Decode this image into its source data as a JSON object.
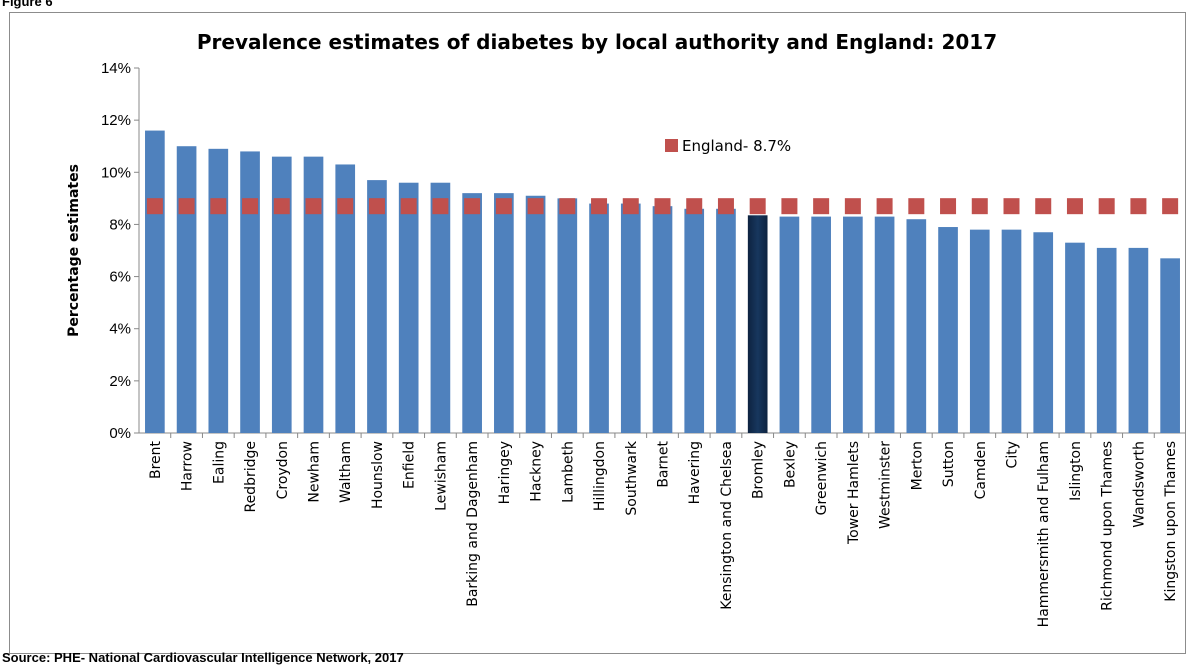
{
  "figure_label": "Figure 6",
  "source": "Source:  PHE- National Cardiovascular Intelligence Network, 2017",
  "colors": {
    "bar": "#4f81bd",
    "bar_highlight": "#17375e",
    "england_marker": "#c0504d",
    "axis": "#888888",
    "grid": "#d9d9d9"
  },
  "chart_data": {
    "type": "bar",
    "title": "Prevalence estimates of diabetes by local authority and England: 2017",
    "xlabel": "",
    "ylabel": "Percentage estimates",
    "ylim": [
      0,
      14
    ],
    "yticks": [
      0,
      2,
      4,
      6,
      8,
      10,
      12,
      14
    ],
    "ytick_labels": [
      "0%",
      "2%",
      "4%",
      "6%",
      "8%",
      "10%",
      "12%",
      "14%"
    ],
    "grid": false,
    "categories": [
      "Brent",
      "Harrow",
      "Ealing",
      "Redbridge",
      "Croydon",
      "Newham",
      "Waltham",
      "Hounslow",
      "Enfield",
      "Lewisham",
      "Barking and Dagenham",
      "Haringey",
      "Hackney",
      "Lambeth",
      "Hillingdon",
      "Southwark",
      "Barnet",
      "Havering",
      "Kensington and Chelsea",
      "Bromley",
      "Bexley",
      "Greenwich",
      "Tower Hamlets",
      "Westminster",
      "Merton",
      "Sutton",
      "Camden",
      "City",
      "Hammersmith and Fulham",
      "Islington",
      "Richmond upon Thames",
      "Wandsworth",
      "Kingston upon Thames"
    ],
    "values": [
      11.6,
      11.0,
      10.9,
      10.8,
      10.6,
      10.6,
      10.3,
      9.7,
      9.6,
      9.6,
      9.2,
      9.2,
      9.1,
      9.0,
      8.8,
      8.8,
      8.7,
      8.6,
      8.6,
      8.35,
      8.3,
      8.3,
      8.3,
      8.3,
      8.2,
      7.9,
      7.8,
      7.8,
      7.7,
      7.3,
      7.1,
      7.1,
      6.7
    ],
    "highlight": "Bromley",
    "reference": {
      "name": "England- 8.7%",
      "value": 8.7
    },
    "legend_position": "top-right"
  }
}
